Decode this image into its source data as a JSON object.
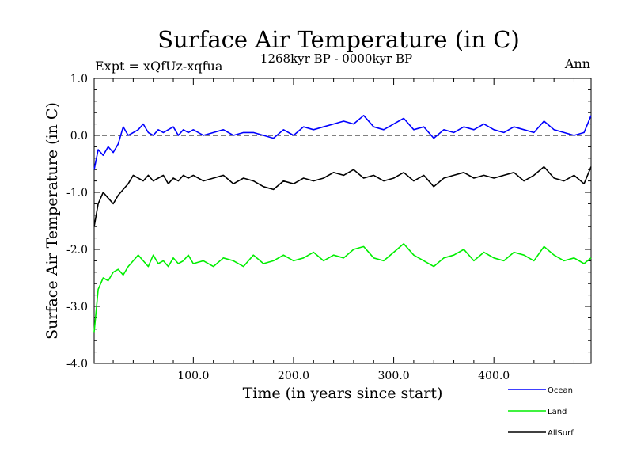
{
  "chart_data": {
    "type": "line",
    "title": "Surface Air Temperature (in C)",
    "subtitle": "1268kyr BP - 0000kyr BP",
    "expt_label": "Expt = xQfUz-xqfua",
    "season_label": "Ann",
    "xlabel": "Time (in years since start)",
    "ylabel": "Surface Air Temperature (in C)",
    "xlim": [
      1,
      497
    ],
    "ylim": [
      -4.0,
      1.0
    ],
    "x_ticks": [
      100,
      200,
      300,
      400
    ],
    "x_tick_labels": [
      "100.0",
      "200.0",
      "300.0",
      "400.0"
    ],
    "y_ticks": [
      1.0,
      0.0,
      -1.0,
      -2.0,
      -3.0,
      -4.0
    ],
    "y_tick_labels": [
      "1.0",
      "0.0",
      "-1.0",
      "-2.0",
      "-3.0",
      "-4.0"
    ],
    "reference_line": 0.0,
    "legend_position": "bottom-right",
    "series": [
      {
        "name": "Ocean",
        "color": "#0000ff",
        "x": [
          1,
          5,
          10,
          15,
          20,
          25,
          30,
          35,
          40,
          45,
          50,
          55,
          60,
          65,
          70,
          75,
          80,
          85,
          90,
          95,
          100,
          110,
          120,
          130,
          140,
          150,
          160,
          170,
          180,
          190,
          200,
          210,
          220,
          230,
          240,
          250,
          260,
          270,
          280,
          290,
          300,
          310,
          320,
          330,
          340,
          350,
          360,
          370,
          380,
          390,
          400,
          410,
          420,
          430,
          440,
          450,
          460,
          470,
          480,
          490,
          497
        ],
        "values": [
          -0.6,
          -0.25,
          -0.35,
          -0.2,
          -0.3,
          -0.15,
          0.15,
          0.0,
          0.05,
          0.1,
          0.2,
          0.05,
          0.0,
          0.1,
          0.05,
          0.1,
          0.15,
          0.0,
          0.1,
          0.05,
          0.1,
          0.0,
          0.05,
          0.1,
          0.0,
          0.05,
          0.05,
          0.0,
          -0.05,
          0.1,
          0.0,
          0.15,
          0.1,
          0.15,
          0.2,
          0.25,
          0.2,
          0.35,
          0.15,
          0.1,
          0.2,
          0.3,
          0.1,
          0.15,
          -0.05,
          0.1,
          0.05,
          0.15,
          0.1,
          0.2,
          0.1,
          0.05,
          0.15,
          0.1,
          0.05,
          0.25,
          0.1,
          0.05,
          0.0,
          0.05,
          0.35
        ]
      },
      {
        "name": "Land",
        "color": "#00ee00",
        "x": [
          1,
          5,
          10,
          15,
          20,
          25,
          30,
          35,
          40,
          45,
          50,
          55,
          60,
          65,
          70,
          75,
          80,
          85,
          90,
          95,
          100,
          110,
          120,
          130,
          140,
          150,
          160,
          170,
          180,
          190,
          200,
          210,
          220,
          230,
          240,
          250,
          260,
          270,
          280,
          290,
          300,
          310,
          320,
          330,
          340,
          350,
          360,
          370,
          380,
          390,
          400,
          410,
          420,
          430,
          440,
          450,
          460,
          470,
          480,
          490,
          497
        ],
        "values": [
          -3.45,
          -2.7,
          -2.5,
          -2.55,
          -2.4,
          -2.35,
          -2.45,
          -2.3,
          -2.2,
          -2.1,
          -2.2,
          -2.3,
          -2.1,
          -2.25,
          -2.2,
          -2.3,
          -2.15,
          -2.25,
          -2.2,
          -2.1,
          -2.25,
          -2.2,
          -2.3,
          -2.15,
          -2.2,
          -2.3,
          -2.1,
          -2.25,
          -2.2,
          -2.1,
          -2.2,
          -2.15,
          -2.05,
          -2.2,
          -2.1,
          -2.15,
          -2.0,
          -1.95,
          -2.15,
          -2.2,
          -2.05,
          -1.9,
          -2.1,
          -2.2,
          -2.3,
          -2.15,
          -2.1,
          -2.0,
          -2.2,
          -2.05,
          -2.15,
          -2.2,
          -2.05,
          -2.1,
          -2.2,
          -1.95,
          -2.1,
          -2.2,
          -2.15,
          -2.25,
          -2.15
        ]
      },
      {
        "name": "AllSurf",
        "color": "#000000",
        "x": [
          1,
          5,
          10,
          15,
          20,
          25,
          30,
          35,
          40,
          45,
          50,
          55,
          60,
          65,
          70,
          75,
          80,
          85,
          90,
          95,
          100,
          110,
          120,
          130,
          140,
          150,
          160,
          170,
          180,
          190,
          200,
          210,
          220,
          230,
          240,
          250,
          260,
          270,
          280,
          290,
          300,
          310,
          320,
          330,
          340,
          350,
          360,
          370,
          380,
          390,
          400,
          410,
          420,
          430,
          440,
          450,
          460,
          470,
          480,
          490,
          497
        ],
        "values": [
          -1.6,
          -1.2,
          -1.0,
          -1.1,
          -1.2,
          -1.05,
          -0.95,
          -0.85,
          -0.7,
          -0.75,
          -0.8,
          -0.7,
          -0.8,
          -0.75,
          -0.7,
          -0.85,
          -0.75,
          -0.8,
          -0.7,
          -0.75,
          -0.7,
          -0.8,
          -0.75,
          -0.7,
          -0.85,
          -0.75,
          -0.8,
          -0.9,
          -0.95,
          -0.8,
          -0.85,
          -0.75,
          -0.8,
          -0.75,
          -0.65,
          -0.7,
          -0.6,
          -0.75,
          -0.7,
          -0.8,
          -0.75,
          -0.65,
          -0.8,
          -0.7,
          -0.9,
          -0.75,
          -0.7,
          -0.65,
          -0.75,
          -0.7,
          -0.75,
          -0.7,
          -0.65,
          -0.8,
          -0.7,
          -0.55,
          -0.75,
          -0.8,
          -0.7,
          -0.85,
          -0.55
        ]
      }
    ]
  }
}
